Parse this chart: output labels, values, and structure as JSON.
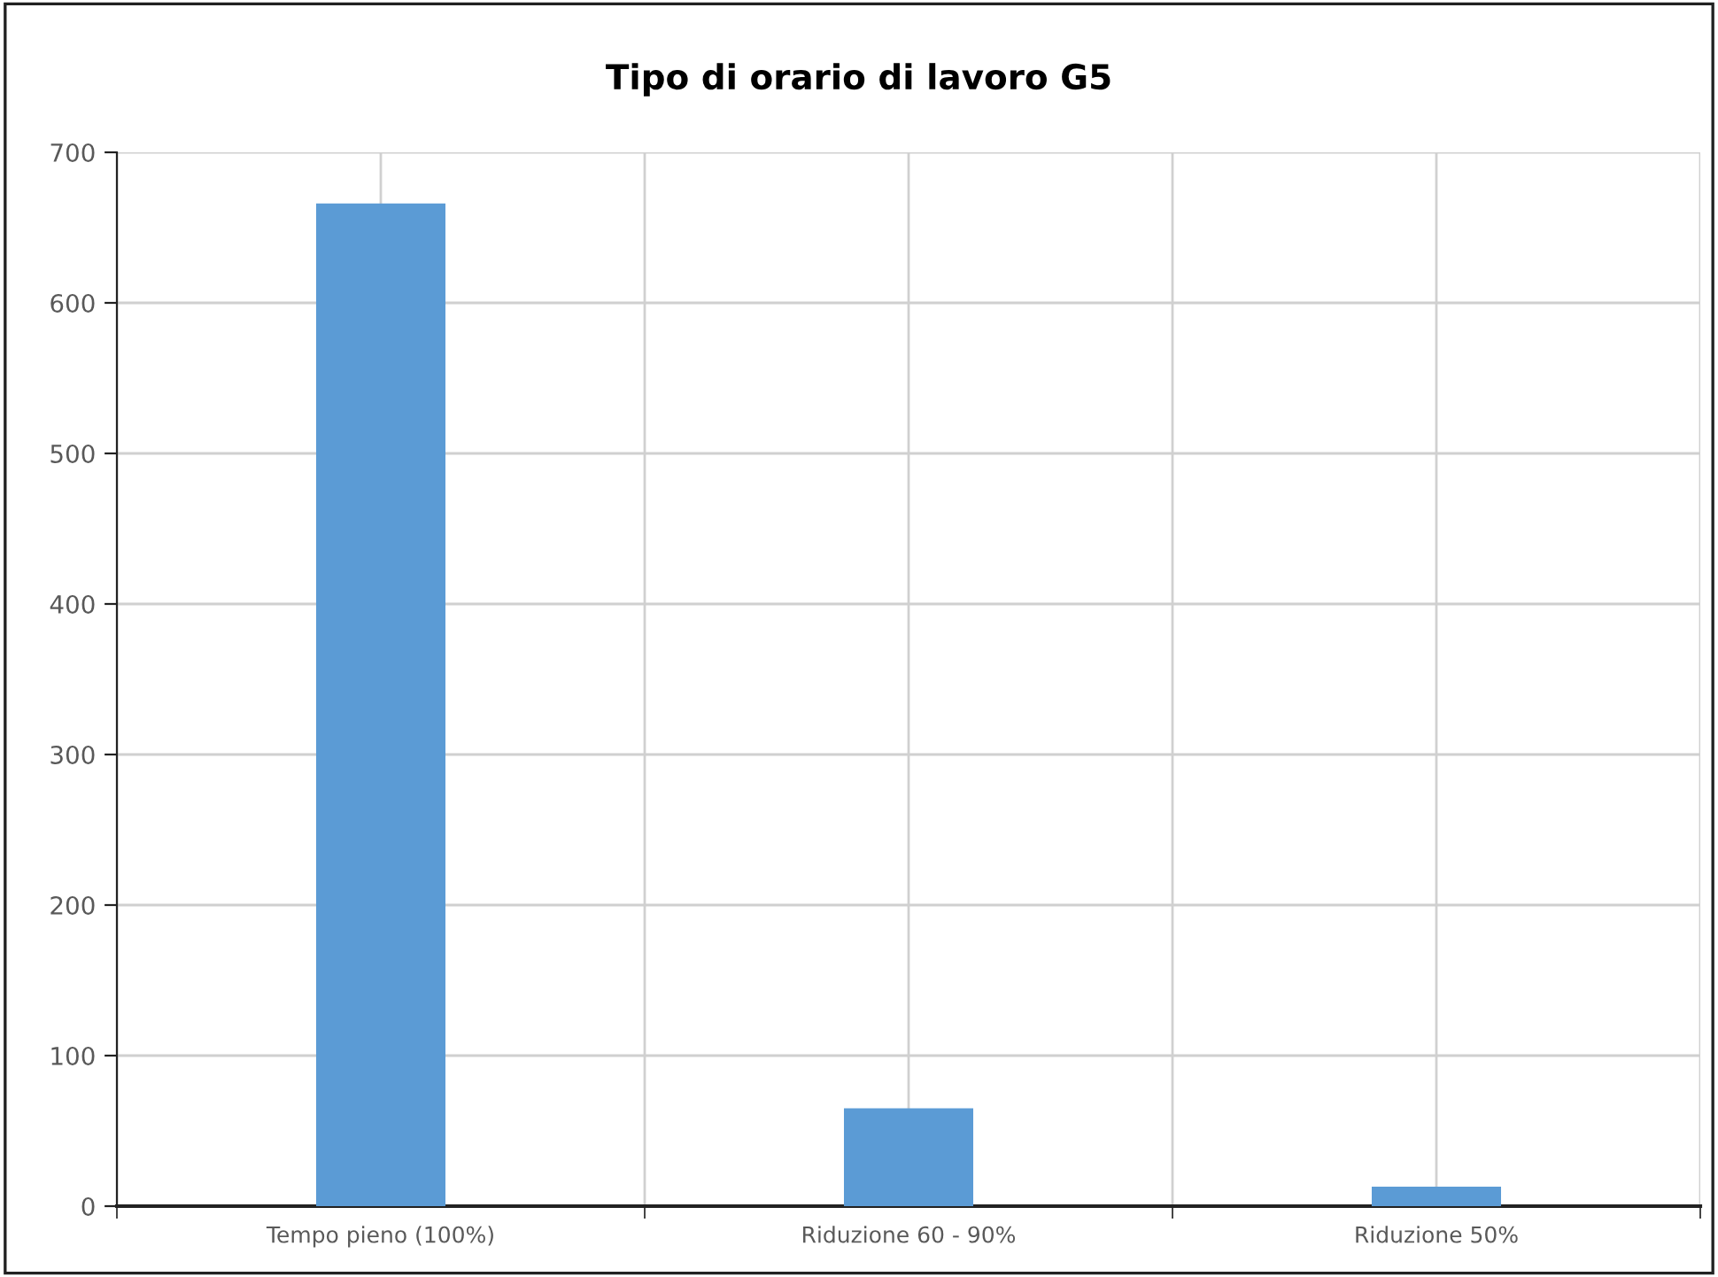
{
  "chart_data": {
    "type": "bar",
    "title": "Tipo di orario di lavoro G5",
    "categories": [
      "Tempo pieno (100%)",
      "Riduzione 60 - 90%",
      "Riduzione 50%"
    ],
    "values": [
      666,
      65,
      13
    ],
    "color": "#5b9bd5",
    "ylim": [
      0,
      700
    ],
    "yticks": [
      0,
      100,
      200,
      300,
      400,
      500,
      600,
      700
    ],
    "grid": true
  }
}
